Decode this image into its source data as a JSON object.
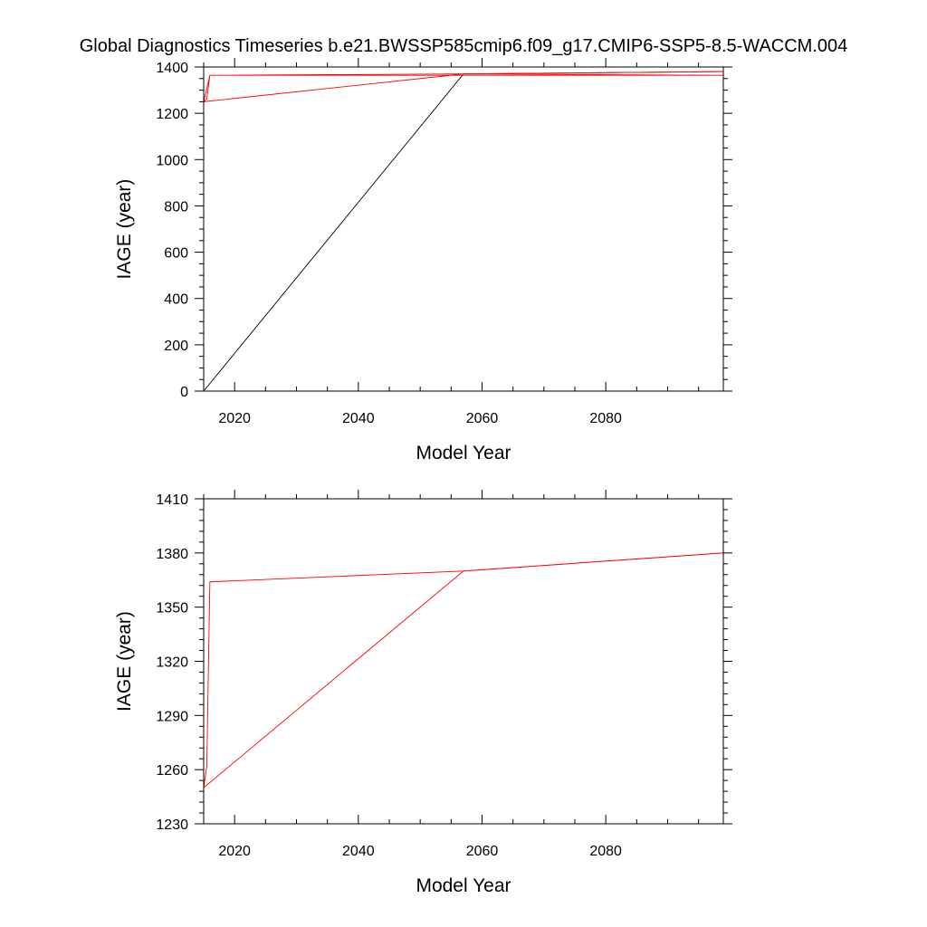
{
  "figure": {
    "title": "Global Diagnostics Timeseries b.e21.BWSSP585cmip6.f09_g17.CMIP6-SSP5-8.5-WACCM.004"
  },
  "chart_data": [
    {
      "type": "line",
      "xlabel": "Model Year",
      "ylabel": "IAGE (year)",
      "xlim": [
        2015,
        2099
      ],
      "ylim": [
        0,
        1400
      ],
      "xticks": [
        2020,
        2040,
        2060,
        2080
      ],
      "yticks": [
        0,
        200,
        400,
        600,
        800,
        1000,
        1200,
        1400
      ],
      "x_minor_step": 5,
      "y_minor_step": 50,
      "series": [
        {
          "color": "#000000",
          "points": [
            [
              2015,
              0
            ],
            [
              2057,
              1370
            ],
            [
              2099,
              1380
            ]
          ]
        },
        {
          "color": "#ff0000",
          "points": [
            [
              2015,
              1250
            ],
            [
              2015.5,
              1262
            ],
            [
              2016,
              1364
            ],
            [
              2099,
              1364
            ],
            [
              2057,
              1370
            ],
            [
              2015,
              1250
            ],
            [
              2016,
              1364
            ],
            [
              2057,
              1370
            ],
            [
              2099,
              1380
            ]
          ]
        }
      ]
    },
    {
      "type": "line",
      "xlabel": "Model Year",
      "ylabel": "IAGE (year)",
      "xlim": [
        2015,
        2099
      ],
      "ylim": [
        1230,
        1410
      ],
      "xticks": [
        2020,
        2040,
        2060,
        2080
      ],
      "yticks": [
        1230,
        1260,
        1290,
        1320,
        1350,
        1380,
        1410
      ],
      "x_minor_step": 5,
      "y_minor_step": 6,
      "series": [
        {
          "color": "#ff0000",
          "points": [
            [
              2015,
              1250
            ],
            [
              2015.5,
              1262
            ],
            [
              2016,
              1364
            ],
            [
              2057,
              1370
            ],
            [
              2099,
              1380
            ]
          ]
        },
        {
          "color": "#ff0000",
          "points": [
            [
              2015,
              1250
            ],
            [
              2057,
              1370
            ],
            [
              2099,
              1380
            ]
          ]
        }
      ]
    }
  ]
}
